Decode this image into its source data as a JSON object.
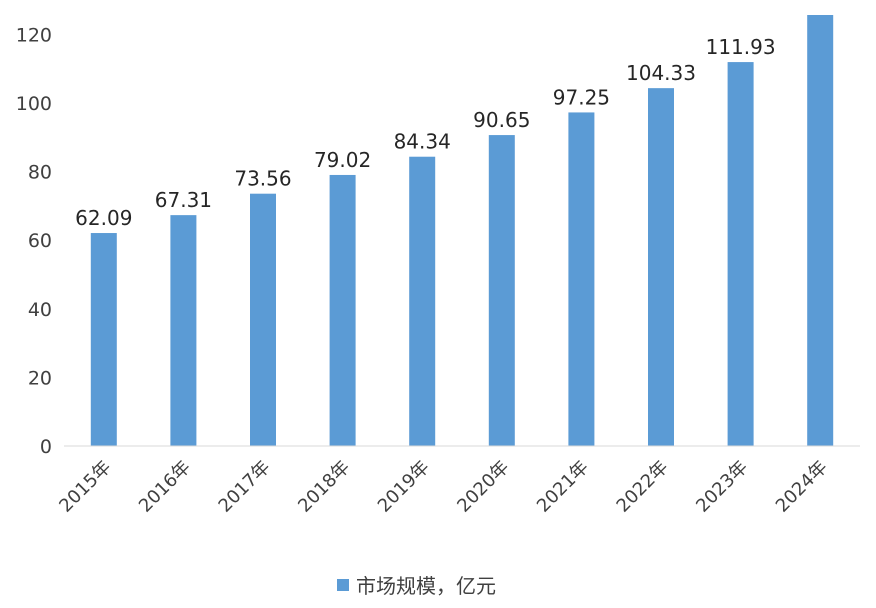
{
  "chart_data": {
    "type": "bar",
    "categories": [
      "2015年",
      "2016年",
      "2017年",
      "2018年",
      "2019年",
      "2020年",
      "2021年",
      "2022年",
      "2023年",
      "2024年"
    ],
    "series": [
      {
        "name": "市场规模，亿元",
        "values": [
          62.09,
          67.31,
          73.56,
          79.02,
          84.34,
          90.65,
          97.25,
          104.33,
          111.93,
          126.0
        ],
        "data_labels": [
          "62.09",
          "67.31",
          "73.56",
          "79.02",
          "84.34",
          "90.65",
          "97.25",
          "104.33",
          "111.93",
          ""
        ],
        "color": "#5B9BD5"
      }
    ],
    "yticks": [
      0,
      20,
      40,
      60,
      80,
      100,
      120
    ],
    "ylim": [
      0,
      126
    ],
    "grid": false,
    "legend_position": "bottom"
  }
}
